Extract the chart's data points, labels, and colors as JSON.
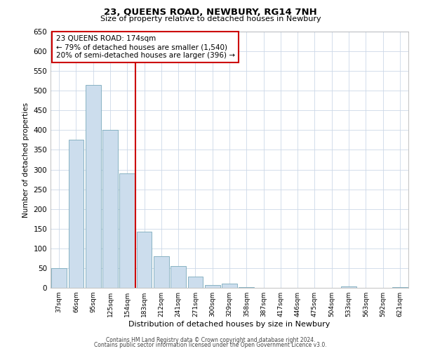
{
  "title": "23, QUEENS ROAD, NEWBURY, RG14 7NH",
  "subtitle": "Size of property relative to detached houses in Newbury",
  "xlabel": "Distribution of detached houses by size in Newbury",
  "ylabel": "Number of detached properties",
  "bar_values": [
    50,
    375,
    515,
    400,
    290,
    143,
    81,
    56,
    29,
    8,
    10,
    2,
    0,
    0,
    0,
    0,
    0,
    3,
    0,
    0,
    2
  ],
  "bar_labels": [
    "37sqm",
    "66sqm",
    "95sqm",
    "125sqm",
    "154sqm",
    "183sqm",
    "212sqm",
    "241sqm",
    "271sqm",
    "300sqm",
    "329sqm",
    "358sqm",
    "387sqm",
    "417sqm",
    "446sqm",
    "475sqm",
    "504sqm",
    "533sqm",
    "563sqm",
    "592sqm",
    "621sqm"
  ],
  "bar_color": "#ccdded",
  "bar_edge_color": "#7aaabb",
  "vline_color": "#cc0000",
  "annotation_title": "23 QUEENS ROAD: 174sqm",
  "annotation_line1": "← 79% of detached houses are smaller (1,540)",
  "annotation_line2": "20% of semi-detached houses are larger (396) →",
  "annotation_box_color": "#ffffff",
  "annotation_box_edge_color": "#cc0000",
  "ylim": [
    0,
    650
  ],
  "yticks": [
    0,
    50,
    100,
    150,
    200,
    250,
    300,
    350,
    400,
    450,
    500,
    550,
    600,
    650
  ],
  "footer_line1": "Contains HM Land Registry data © Crown copyright and database right 2024.",
  "footer_line2": "Contains public sector information licensed under the Open Government Licence v3.0.",
  "bg_color": "#ffffff",
  "grid_color": "#ccd8e8"
}
